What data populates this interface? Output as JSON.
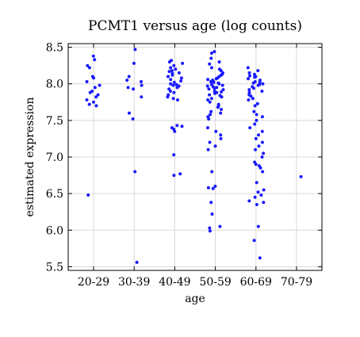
{
  "chart_data": {
    "type": "scatter",
    "title": "PCMT1 versus age (log counts)",
    "xlabel": "age",
    "ylabel": "estimated expression",
    "categories": [
      "20-29",
      "30-39",
      "40-49",
      "50-59",
      "60-69",
      "70-79"
    ],
    "y_ticks": [
      "5.5",
      "6.0",
      "6.5",
      "7.0",
      "7.5",
      "8.0",
      "8.5"
    ],
    "ylim": [
      5.45,
      8.55
    ],
    "grid": true,
    "legend": "none",
    "point_color": "#1a1aff",
    "series": [
      {
        "category": "20-29",
        "values": [
          8.38,
          8.33,
          8.25,
          8.22,
          8.1,
          8.08,
          8.03,
          7.98,
          7.95,
          7.9,
          7.88,
          7.85,
          7.82,
          7.78,
          7.75,
          7.72,
          7.7,
          6.48
        ]
      },
      {
        "category": "30-39",
        "values": [
          8.47,
          8.28,
          8.1,
          8.05,
          8.03,
          7.98,
          7.95,
          7.93,
          7.82,
          7.6,
          7.52,
          6.8,
          5.56
        ]
      },
      {
        "category": "40-49",
        "values": [
          8.32,
          8.3,
          8.28,
          8.25,
          8.22,
          8.2,
          8.18,
          8.17,
          8.15,
          8.14,
          8.12,
          8.1,
          8.08,
          8.06,
          8.04,
          8.02,
          8.0,
          7.99,
          7.98,
          7.97,
          7.95,
          7.93,
          7.9,
          7.88,
          7.85,
          7.82,
          7.8,
          7.78,
          7.43,
          7.42,
          7.4,
          7.38,
          7.35,
          7.03,
          6.77,
          6.75
        ]
      },
      {
        "category": "50-59",
        "values": [
          8.44,
          8.42,
          8.35,
          8.3,
          8.27,
          8.22,
          8.2,
          8.18,
          8.15,
          8.13,
          8.12,
          8.1,
          8.08,
          8.07,
          8.06,
          8.05,
          8.04,
          8.03,
          8.02,
          8.01,
          8.0,
          7.99,
          7.98,
          7.97,
          7.96,
          7.95,
          7.94,
          7.93,
          7.92,
          7.9,
          7.89,
          7.88,
          7.87,
          7.85,
          7.84,
          7.82,
          7.8,
          7.78,
          7.75,
          7.72,
          7.7,
          7.68,
          7.65,
          7.62,
          7.6,
          7.58,
          7.55,
          7.52,
          7.4,
          7.35,
          7.3,
          7.25,
          7.2,
          7.15,
          7.1,
          6.8,
          6.6,
          6.58,
          6.57,
          6.38,
          6.22,
          6.05,
          6.03,
          5.99
        ]
      },
      {
        "category": "60-69",
        "values": [
          8.22,
          8.18,
          8.15,
          8.13,
          8.11,
          8.1,
          8.09,
          8.07,
          8.05,
          8.03,
          8.02,
          8.01,
          8.0,
          7.99,
          7.98,
          7.96,
          7.94,
          7.92,
          7.9,
          7.88,
          7.85,
          7.83,
          7.8,
          7.78,
          7.73,
          7.7,
          7.62,
          7.58,
          7.55,
          7.5,
          7.45,
          7.4,
          7.35,
          7.3,
          7.25,
          7.2,
          7.15,
          7.1,
          7.05,
          7.0,
          6.93,
          6.9,
          6.88,
          6.85,
          6.8,
          6.65,
          6.55,
          6.52,
          6.48,
          6.45,
          6.4,
          6.38,
          6.35,
          6.05,
          5.86,
          5.62
        ]
      },
      {
        "category": "70-79",
        "values": [
          6.73
        ]
      }
    ]
  }
}
